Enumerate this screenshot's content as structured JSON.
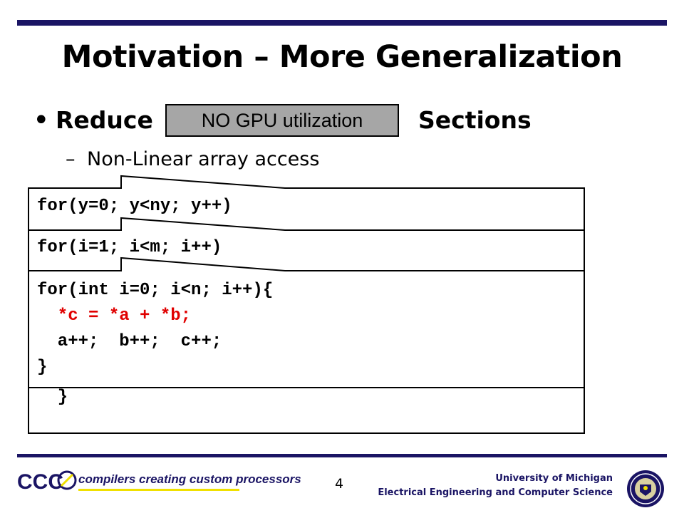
{
  "slide": {
    "title": "Motivation – More Generalization",
    "bullet": {
      "marker": "•",
      "word_before": "Reduce",
      "overlay_box": "NO GPU utilization",
      "word_after": "Sections"
    },
    "sub_bullet": {
      "marker": "–",
      "text": "Non-Linear array access"
    }
  },
  "code_boxes": [
    {
      "lines": [
        "for(y=0; y<ny; y++)"
      ]
    },
    {
      "lines": [
        "for(i=1; i<m; i++)"
      ],
      "trailing_line": "  }"
    },
    {
      "lines": [
        "for(int i=0; i<n; i++){",
        "  *c = *a + *b;",
        "  a++;  b++;  c++;",
        "}"
      ],
      "highlight_line_index": 1,
      "highlight_color": "#e00000"
    }
  ],
  "footer": {
    "logo_abbr": "CCC",
    "logo_text": "compilers creating custom processors",
    "page_number": "4",
    "university": "University of Michigan",
    "department": "Electrical Engineering and Computer Science"
  },
  "colors": {
    "navy": "#1a1464",
    "gpu_box": "#a6a6a6",
    "code_highlight": "#e00000",
    "logo_underline": "#f0e000"
  }
}
